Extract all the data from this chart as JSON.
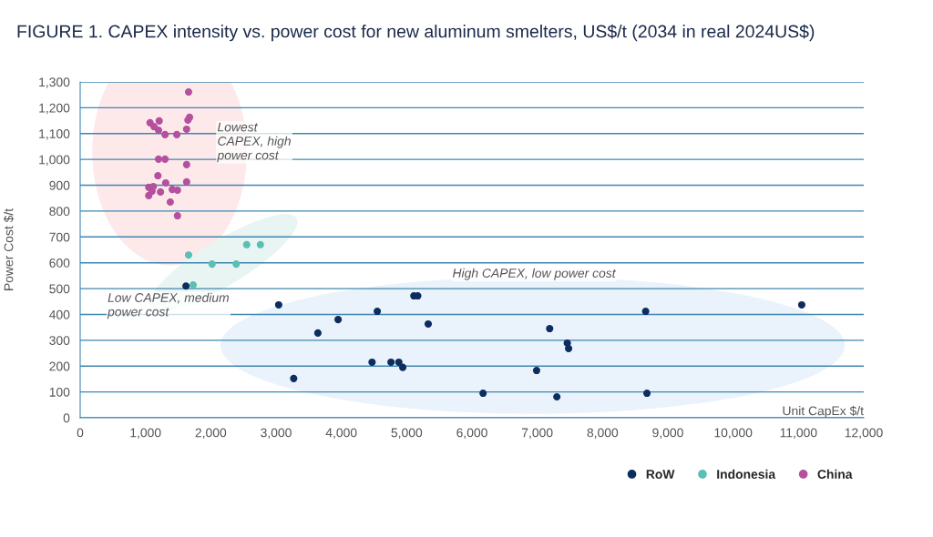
{
  "chart_data": {
    "type": "scatter",
    "title": "FIGURE 1. CAPEX intensity vs. power cost for new aluminum smelters, US$/t (2034 in real 2024US$)",
    "xlabel": "Unit CapEx $/t",
    "ylabel": "Power Cost $/t",
    "series": [
      {
        "name": "RoW",
        "color": "#0d2d5e",
        "x": [
          1620,
          3040,
          3270,
          3640,
          3950,
          4550,
          4470,
          4760,
          4880,
          4940,
          5110,
          5170,
          5330,
          6170,
          6990,
          7190,
          7460,
          7480,
          7300,
          8660,
          8680,
          11050
        ],
        "values": [
          510,
          437,
          152,
          328,
          380,
          412,
          215,
          215,
          215,
          195,
          472,
          472,
          363,
          95,
          183,
          345,
          289,
          268,
          81,
          412,
          95,
          437
        ]
      },
      {
        "name": "Indonesia",
        "color": "#5bbfb5",
        "x": [
          1660,
          1730,
          2020,
          2390,
          2550,
          2760
        ],
        "values": [
          630,
          514,
          595,
          595,
          670,
          670
        ]
      },
      {
        "name": "China",
        "color": "#b5509f",
        "x": [
          1660,
          1650,
          1675,
          1630,
          1070,
          1210,
          1130,
          1200,
          1300,
          1480,
          1200,
          1300,
          1630,
          1190,
          1630,
          1310,
          1050,
          1120,
          1100,
          1230,
          1050,
          1410,
          1490,
          1380,
          1490
        ],
        "values": [
          1261,
          1152,
          1163,
          1117,
          1142,
          1149,
          1127,
          1113,
          1096,
          1096,
          1001,
          1001,
          980,
          937,
          913,
          909,
          892,
          895,
          877,
          874,
          860,
          884,
          881,
          835,
          782
        ]
      }
    ],
    "xlim": [
      0,
      12000
    ],
    "ylim": [
      0,
      1300
    ],
    "xticks": [
      0,
      {
        "value": 1000,
        "label": "1,000"
      },
      {
        "value": 2000,
        "label": "2,000"
      },
      {
        "value": 3000,
        "label": "3,000"
      },
      {
        "value": 4000,
        "label": "4,000"
      },
      {
        "value": 5000,
        "label": "5,000"
      },
      {
        "value": 6000,
        "label": "6,000"
      },
      {
        "value": 7000,
        "label": "7,000"
      },
      {
        "value": 8000,
        "label": "8,000"
      },
      {
        "value": 9000,
        "label": "9,000"
      },
      {
        "value": 10000,
        "label": "10,000"
      },
      {
        "value": 11000,
        "label": "11,000"
      },
      {
        "value": 12000,
        "label": "12,000"
      }
    ],
    "yticks": [
      0,
      100,
      200,
      300,
      400,
      500,
      600,
      700,
      800,
      900,
      {
        "value": 1000,
        "label": "1,000"
      },
      {
        "value": 1100,
        "label": "1,100"
      },
      {
        "value": 1200,
        "label": "1,200"
      },
      {
        "value": 1300,
        "label": "1,300"
      }
    ],
    "annotations": [
      "Lowest\nCAPEX, high\npower cost",
      "Low CAPEX, medium\npower cost",
      "High CAPEX, low power cost"
    ],
    "grid": "y",
    "legend": "bottom right",
    "marker": "circle"
  }
}
